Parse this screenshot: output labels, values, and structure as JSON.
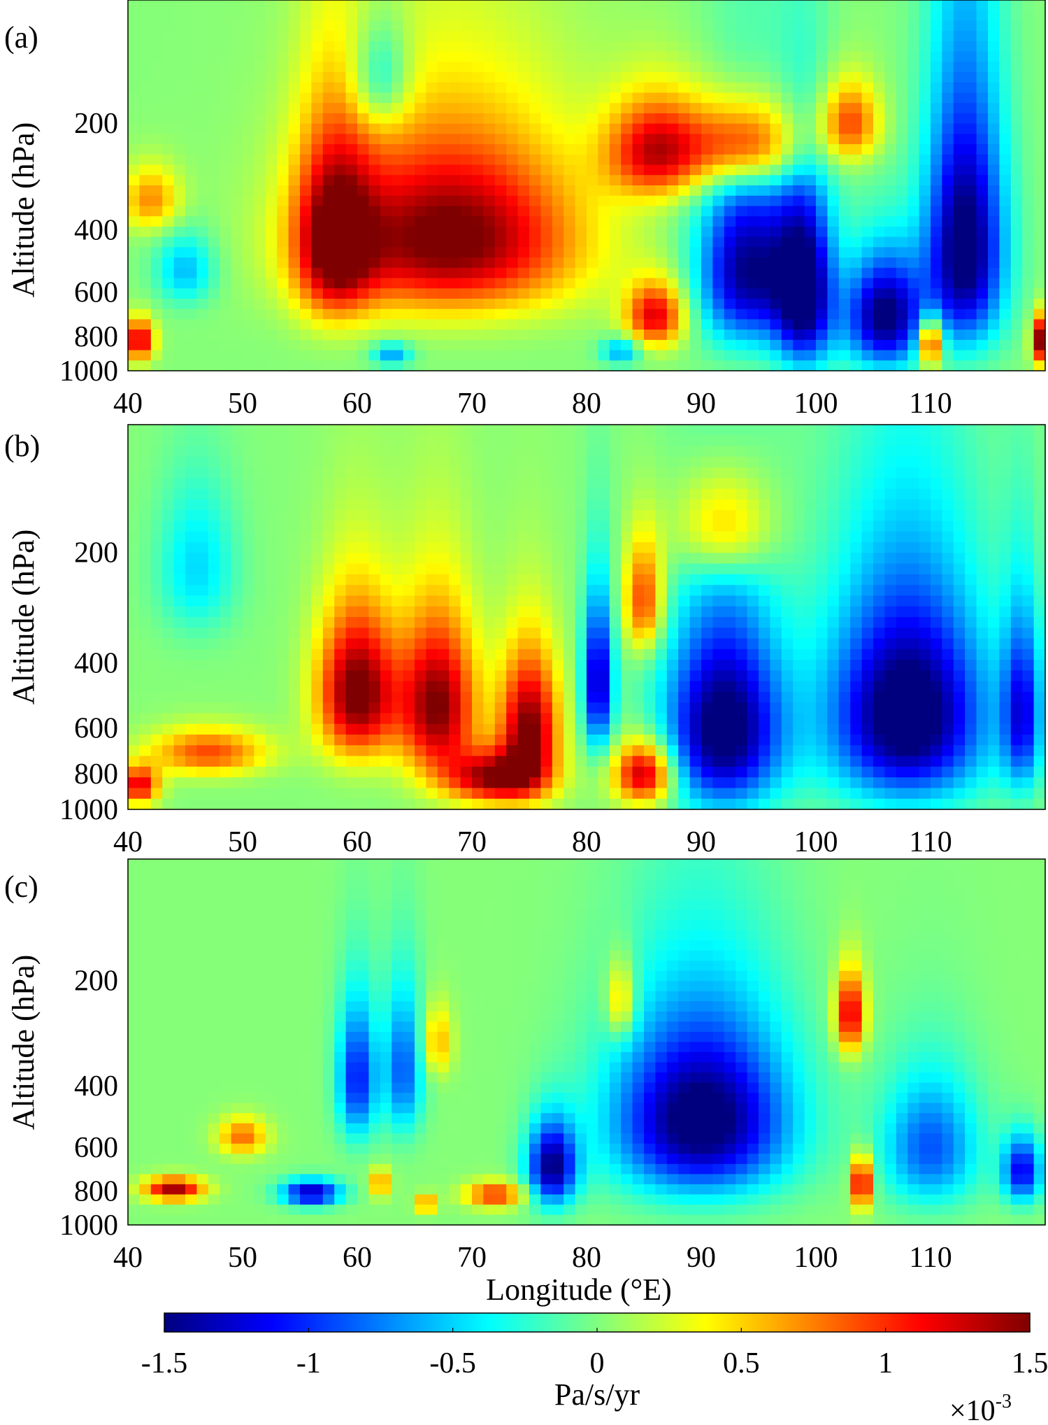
{
  "chart_data": [
    {
      "type": "heatmap",
      "panel_label": "(a)",
      "xlabel": "",
      "ylabel": "Altitude (hPa)",
      "xlim": [
        40,
        120
      ],
      "ylim": [
        1000,
        100
      ],
      "x_ticks": [
        "40",
        "50",
        "60",
        "70",
        "80",
        "90",
        "100",
        "110"
      ],
      "y_ticks": [
        "200",
        "400",
        "600",
        "800",
        "1000"
      ],
      "blobs": [
        {
          "x": 68,
          "p": 420,
          "rx": 13,
          "rp": 280,
          "v": 1.6
        },
        {
          "x": 58,
          "p": 430,
          "rx": 4,
          "rp": 300,
          "v": 1.3
        },
        {
          "x": 86,
          "p": 240,
          "rx": 5,
          "rp": 90,
          "v": 1.2
        },
        {
          "x": 94,
          "p": 230,
          "rx": 6,
          "rp": 80,
          "v": 1.3
        },
        {
          "x": 103,
          "p": 200,
          "rx": 3,
          "rp": 60,
          "v": 0.9
        },
        {
          "x": 42,
          "p": 330,
          "rx": 3,
          "rp": 80,
          "v": 0.7
        },
        {
          "x": 86,
          "p": 700,
          "rx": 3,
          "rp": 170,
          "v": 1.2
        },
        {
          "x": 110,
          "p": 830,
          "rx": 1.2,
          "rp": 150,
          "v": 1.5
        },
        {
          "x": 119.5,
          "p": 820,
          "rx": 0.8,
          "rp": 150,
          "v": 1.5
        },
        {
          "x": 41,
          "p": 820,
          "rx": 1.5,
          "rp": 130,
          "v": 1.3
        },
        {
          "x": 94,
          "p": 520,
          "rx": 5,
          "rp": 340,
          "v": -1.5
        },
        {
          "x": 99,
          "p": 600,
          "rx": 3,
          "rp": 400,
          "v": -1.6
        },
        {
          "x": 106,
          "p": 700,
          "rx": 4,
          "rp": 300,
          "v": -1.6
        },
        {
          "x": 113,
          "p": 450,
          "rx": 4,
          "rp": 420,
          "v": -1.7
        },
        {
          "x": 45,
          "p": 520,
          "rx": 3,
          "rp": 140,
          "v": -0.6
        },
        {
          "x": 62,
          "p": 150,
          "rx": 3,
          "rp": 60,
          "v": -0.6
        },
        {
          "x": 63,
          "p": 900,
          "rx": 2,
          "rp": 80,
          "v": -0.7
        },
        {
          "x": 83,
          "p": 880,
          "rx": 2,
          "rp": 90,
          "v": -0.7
        }
      ]
    },
    {
      "type": "heatmap",
      "panel_label": "(b)",
      "xlabel": "",
      "ylabel": "Altitude (hPa)",
      "xlim": [
        40,
        120
      ],
      "ylim": [
        1000,
        100
      ],
      "x_ticks": [
        "40",
        "50",
        "60",
        "70",
        "80",
        "90",
        "100",
        "110"
      ],
      "y_ticks": [
        "200",
        "400",
        "600",
        "800",
        "1000"
      ],
      "blobs": [
        {
          "x": 60,
          "p": 480,
          "rx": 4,
          "rp": 260,
          "v": 1.6
        },
        {
          "x": 67,
          "p": 520,
          "rx": 4,
          "rp": 300,
          "v": 1.5
        },
        {
          "x": 75,
          "p": 600,
          "rx": 3,
          "rp": 300,
          "v": 1.5
        },
        {
          "x": 72,
          "p": 820,
          "rx": 5,
          "rp": 160,
          "v": 1.4
        },
        {
          "x": 85,
          "p": 800,
          "rx": 3,
          "rp": 180,
          "v": 1.4
        },
        {
          "x": 85,
          "p": 270,
          "rx": 2,
          "rp": 110,
          "v": 1.0
        },
        {
          "x": 92,
          "p": 170,
          "rx": 5,
          "rp": 70,
          "v": 0.8
        },
        {
          "x": 47,
          "p": 700,
          "rx": 6,
          "rp": 120,
          "v": 0.9
        },
        {
          "x": 41,
          "p": 860,
          "rx": 2,
          "rp": 120,
          "v": 1.2
        },
        {
          "x": 92,
          "p": 600,
          "rx": 6,
          "rp": 420,
          "v": -1.7
        },
        {
          "x": 108,
          "p": 550,
          "rx": 8,
          "rp": 420,
          "v": -1.8
        },
        {
          "x": 81,
          "p": 450,
          "rx": 1.5,
          "rp": 250,
          "v": -1.4
        },
        {
          "x": 46,
          "p": 220,
          "rx": 4,
          "rp": 120,
          "v": -0.5
        },
        {
          "x": 118,
          "p": 550,
          "rx": 2,
          "rp": 350,
          "v": -1.1
        }
      ]
    },
    {
      "type": "heatmap",
      "panel_label": "(c)",
      "xlabel": "Longitude (°E)",
      "ylabel": "Altitude (hPa)",
      "xlim": [
        40,
        120
      ],
      "ylim": [
        1000,
        100
      ],
      "x_ticks": [
        "40",
        "50",
        "60",
        "70",
        "80",
        "90",
        "100",
        "110"
      ],
      "y_ticks": [
        "200",
        "400",
        "600",
        "800",
        "1000"
      ],
      "blobs": [
        {
          "x": 90,
          "p": 500,
          "rx": 9,
          "rp": 340,
          "v": -1.7
        },
        {
          "x": 77,
          "p": 680,
          "rx": 2.5,
          "rp": 220,
          "v": -1.5
        },
        {
          "x": 56,
          "p": 810,
          "rx": 3,
          "rp": 80,
          "v": -1.4
        },
        {
          "x": 60,
          "p": 380,
          "rx": 2,
          "rp": 200,
          "v": -1.1
        },
        {
          "x": 64,
          "p": 360,
          "rx": 2,
          "rp": 200,
          "v": -0.9
        },
        {
          "x": 110,
          "p": 600,
          "rx": 5,
          "rp": 300,
          "v": -0.9
        },
        {
          "x": 118,
          "p": 700,
          "rx": 2,
          "rp": 180,
          "v": -1.2
        },
        {
          "x": 44,
          "p": 790,
          "rx": 3,
          "rp": 70,
          "v": 1.4
        },
        {
          "x": 50,
          "p": 560,
          "rx": 2.5,
          "rp": 80,
          "v": 0.8
        },
        {
          "x": 72,
          "p": 820,
          "rx": 3,
          "rp": 80,
          "v": 1.0
        },
        {
          "x": 103,
          "p": 250,
          "rx": 1.5,
          "rp": 80,
          "v": 1.3
        },
        {
          "x": 104,
          "p": 760,
          "rx": 1,
          "rp": 150,
          "v": 1.5
        },
        {
          "x": 83,
          "p": 230,
          "rx": 1.5,
          "rp": 70,
          "v": 0.7
        },
        {
          "x": 66,
          "p": 870,
          "rx": 1,
          "rp": 60,
          "v": 0.9
        },
        {
          "x": 62,
          "p": 760,
          "rx": 1,
          "rp": 80,
          "v": 0.8
        },
        {
          "x": 67,
          "p": 300,
          "rx": 1.5,
          "rp": 80,
          "v": 0.6
        }
      ]
    }
  ],
  "colorbar": {
    "ticks": [
      "-1.5",
      "-1",
      "-0.5",
      "0",
      "0.5",
      "1",
      "1.5"
    ],
    "tick_values": [
      -1.5,
      -1,
      -0.5,
      0,
      0.5,
      1,
      1.5
    ],
    "range": [
      -1.5,
      1.5
    ],
    "label": "Pa/s/yr",
    "exponent_base": "×10",
    "exponent_power": "-3",
    "colors": [
      "#00007f",
      "#0000ff",
      "#007fff",
      "#00ffff",
      "#7fff7f",
      "#ffff00",
      "#ff7f00",
      "#ff0000",
      "#7f0000"
    ]
  }
}
